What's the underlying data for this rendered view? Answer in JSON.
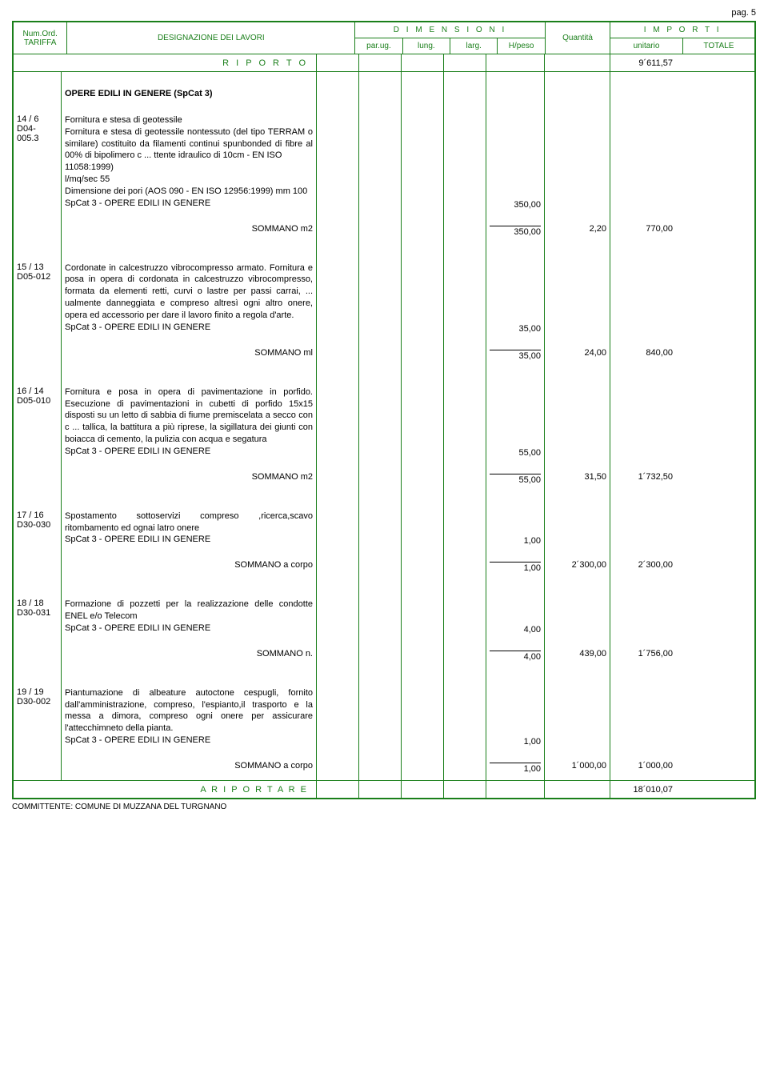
{
  "page_label": "pag. 5",
  "header": {
    "numord": "Num.Ord.",
    "tariffa": "TARIFFA",
    "designazione": "DESIGNAZIONE DEI LAVORI",
    "dimensioni": "D I M E N S I O N I",
    "quantita": "Quantità",
    "importi": "I M P O R T I",
    "parug": "par.ug.",
    "lung": "lung.",
    "larg": "larg.",
    "hpeso": "H/peso",
    "unitario": "unitario",
    "totale": "TOTALE"
  },
  "riporto_label": "R I P O R T O",
  "riporto_value": "9´611,57",
  "category_title": "OPERE EDILI IN GENERE  (SpCat 3)",
  "items": [
    {
      "num": "14 / 6",
      "code": "D04-005.3",
      "desc": "Fornitura e stesa di geotessile\nFornitura e stesa di geotessile nontessuto (del tipo TERRAM o similare) costituito da filamenti continui spunbonded di fibre al 00% di bipolimero c ... ttente idraulico di 10cm - EN ISO\n11058:1999)\nl/mq/sec 55\nDimensione dei pori (AOS 090 - EN ISO 12956:1999) mm 100\nSpCat 3 - OPERE EDILI IN GENERE",
      "quant_sub": "350,00",
      "sommano_label": "SOMMANO m2",
      "sommano_quant": "350,00",
      "unit_price": "2,20",
      "total": "770,00"
    },
    {
      "num": "15 / 13",
      "code": "D05-012",
      "desc": "Cordonate in calcestruzzo vibrocompresso armato. Fornitura e posa in opera di cordonata in calcestruzzo vibrocompresso, formata da elementi retti, curvi o lastre per passi carrai,  ... ualmente danneggiata e compreso altresì ogni altro onere, opera ed accessorio per dare il lavoro finito a regola d'arte.\nSpCat 3 - OPERE EDILI IN GENERE",
      "quant_sub": "35,00",
      "sommano_label": "SOMMANO  ml",
      "sommano_quant": "35,00",
      "unit_price": "24,00",
      "total": "840,00"
    },
    {
      "num": "16 / 14",
      "code": "D05-010",
      "desc": "Fornitura e posa in opera di pavimentazione in porfido. Esecuzione di pavimentazioni in cubetti di porfido 15x15 disposti su un letto di sabbia di fiume premiscelata a secco con c ... tallica, la battitura a più riprese, la sigillatura dei giunti con boiacca di cemento, la pulizia con acqua e segatura\nSpCat 3 - OPERE EDILI IN GENERE",
      "quant_sub": "55,00",
      "sommano_label": "SOMMANO   m2",
      "sommano_quant": "55,00",
      "unit_price": "31,50",
      "total": "1´732,50"
    },
    {
      "num": "17 / 16",
      "code": "D30-030",
      "desc": "Spostamento sottoservizi compreso ,ricerca,scavo ritombamento ed ognai latro onere\nSpCat 3 - OPERE EDILI IN GENERE",
      "quant_sub": "1,00",
      "sommano_label": "SOMMANO a corpo",
      "sommano_quant": "1,00",
      "unit_price": "2´300,00",
      "total": "2´300,00"
    },
    {
      "num": "18 / 18",
      "code": "D30-031",
      "desc": "Formazione di pozzetti per la realizzazione delle condotte ENEL e/o Telecom\nSpCat 3 - OPERE EDILI IN GENERE",
      "quant_sub": "4,00",
      "sommano_label": "SOMMANO n.",
      "sommano_quant": "4,00",
      "unit_price": "439,00",
      "total": "1´756,00"
    },
    {
      "num": "19 / 19",
      "code": "D30-002",
      "desc": "Piantumazione di albeature autoctone cespugli, fornito dall'amministrazione, compreso, l'espianto,il trasporto e la messa a dimora, compreso ogni onere per assicurare l'attecchimneto della pianta.\nSpCat 3 - OPERE EDILI IN GENERE",
      "quant_sub": "1,00",
      "sommano_label": "SOMMANO a corpo",
      "sommano_quant": "1,00",
      "unit_price": "1´000,00",
      "total": "1´000,00"
    }
  ],
  "riportare_label": "A   R I P O R T A R E",
  "riportare_value": "18´010,07",
  "committente": "COMMITTENTE: COMUNE DI MUZZANA DEL TURGNANO",
  "colors": {
    "border": "#1a7f1a",
    "header_text": "#1a7f1a",
    "body_text": "#000000",
    "bg": "#ffffff"
  }
}
